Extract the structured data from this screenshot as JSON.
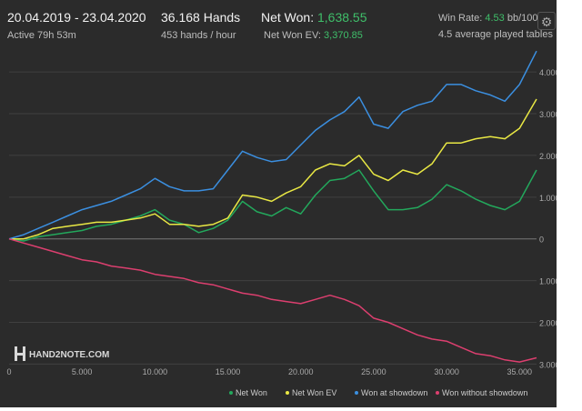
{
  "header": {
    "date_range": "20.04.2019 - 23.04.2020",
    "active": "Active 79h 53m",
    "hands": "36.168 Hands",
    "hands_per_hour": "453 hands / hour",
    "net_won_label": "Net Won:",
    "net_won_value": "1,638.55",
    "net_won_ev_label": "Net Won  EV:",
    "net_won_ev_value": "3,370.85",
    "win_rate_label": "Win Rate:",
    "win_rate_value": "4.53",
    "win_rate_unit": "bb/100",
    "tables": "4.5 average played tables"
  },
  "settings_icon": "gear-icon",
  "brand": {
    "logo_icon": "hand2note-logo-icon",
    "name": "HAND2NOTE.COM"
  },
  "colors": {
    "net_won": "#23a85c",
    "net_won_ev": "#e9e844",
    "showdown": "#3b8fe0",
    "non_showdown": "#dc3f6f"
  },
  "chart_data": {
    "type": "line",
    "xlim": [
      0,
      36168
    ],
    "ylim": [
      -3100,
      4700
    ],
    "x_ticks": [
      0,
      5000,
      10000,
      15000,
      20000,
      25000,
      30000,
      35000
    ],
    "x_tick_labels": [
      "0",
      "5.000",
      "10.000",
      "15.000",
      "20.000",
      "25.000",
      "30.000",
      "35.000"
    ],
    "y_ticks": [
      4000,
      3000,
      2000,
      1000,
      0,
      -1000,
      -2000,
      -3000
    ],
    "y_tick_labels": [
      "4.000",
      "3.000",
      "2.000",
      "1.000",
      "0",
      "1.000",
      "2.000",
      "3.000"
    ],
    "grid": true,
    "legend_position": "bottom-right",
    "series": [
      {
        "name": "Net Won",
        "color_key": "net_won",
        "x": [
          0,
          1000,
          2000,
          3000,
          4000,
          5000,
          6000,
          7000,
          8000,
          9000,
          10000,
          11000,
          12000,
          13000,
          14000,
          15000,
          16000,
          17000,
          18000,
          19000,
          20000,
          21000,
          22000,
          23000,
          24000,
          25000,
          26000,
          27000,
          28000,
          29000,
          30000,
          31000,
          32000,
          33000,
          34000,
          35000,
          36168
        ],
        "y": [
          0,
          -50,
          50,
          100,
          150,
          200,
          300,
          350,
          450,
          550,
          700,
          450,
          350,
          150,
          250,
          450,
          900,
          650,
          550,
          750,
          600,
          1050,
          1400,
          1450,
          1650,
          1150,
          700,
          700,
          750,
          950,
          1300,
          1150,
          950,
          800,
          700,
          900,
          1650
        ]
      },
      {
        "name": "Net Won  EV",
        "color_key": "net_won_ev",
        "x": [
          0,
          1000,
          2000,
          3000,
          4000,
          5000,
          6000,
          7000,
          8000,
          9000,
          10000,
          11000,
          12000,
          13000,
          14000,
          15000,
          16000,
          17000,
          18000,
          19000,
          20000,
          21000,
          22000,
          23000,
          24000,
          25000,
          26000,
          27000,
          28000,
          29000,
          30000,
          31000,
          32000,
          33000,
          34000,
          35000,
          36168
        ],
        "y": [
          0,
          0,
          100,
          250,
          300,
          350,
          400,
          400,
          450,
          500,
          600,
          350,
          350,
          300,
          350,
          500,
          1050,
          1000,
          900,
          1100,
          1250,
          1650,
          1800,
          1750,
          2000,
          1550,
          1400,
          1650,
          1550,
          1800,
          2300,
          2300,
          2400,
          2450,
          2400,
          2650,
          3350
        ]
      },
      {
        "name": "Won at showdown",
        "color_key": "showdown",
        "x": [
          0,
          1000,
          2000,
          3000,
          4000,
          5000,
          6000,
          7000,
          8000,
          9000,
          10000,
          11000,
          12000,
          13000,
          14000,
          15000,
          16000,
          17000,
          18000,
          19000,
          20000,
          21000,
          22000,
          23000,
          24000,
          25000,
          26000,
          27000,
          28000,
          29000,
          30000,
          31000,
          32000,
          33000,
          34000,
          35000,
          36168
        ],
        "y": [
          0,
          100,
          250,
          400,
          550,
          700,
          800,
          900,
          1050,
          1200,
          1450,
          1250,
          1150,
          1150,
          1200,
          1650,
          2100,
          1950,
          1850,
          1900,
          2250,
          2600,
          2850,
          3050,
          3400,
          2750,
          2650,
          3050,
          3200,
          3300,
          3700,
          3700,
          3550,
          3450,
          3300,
          3700,
          4500
        ]
      },
      {
        "name": "Won without showdown",
        "color_key": "non_showdown",
        "x": [
          0,
          1000,
          2000,
          3000,
          4000,
          5000,
          6000,
          7000,
          8000,
          9000,
          10000,
          11000,
          12000,
          13000,
          14000,
          15000,
          16000,
          17000,
          18000,
          19000,
          20000,
          21000,
          22000,
          23000,
          24000,
          25000,
          26000,
          27000,
          28000,
          29000,
          30000,
          31000,
          32000,
          33000,
          34000,
          35000,
          36168
        ],
        "y": [
          0,
          -100,
          -200,
          -300,
          -400,
          -500,
          -550,
          -650,
          -700,
          -750,
          -850,
          -900,
          -950,
          -1050,
          -1100,
          -1200,
          -1300,
          -1350,
          -1450,
          -1500,
          -1550,
          -1450,
          -1350,
          -1450,
          -1600,
          -1900,
          -2000,
          -2150,
          -2300,
          -2400,
          -2450,
          -2600,
          -2750,
          -2800,
          -2900,
          -2950,
          -2850
        ]
      }
    ]
  }
}
